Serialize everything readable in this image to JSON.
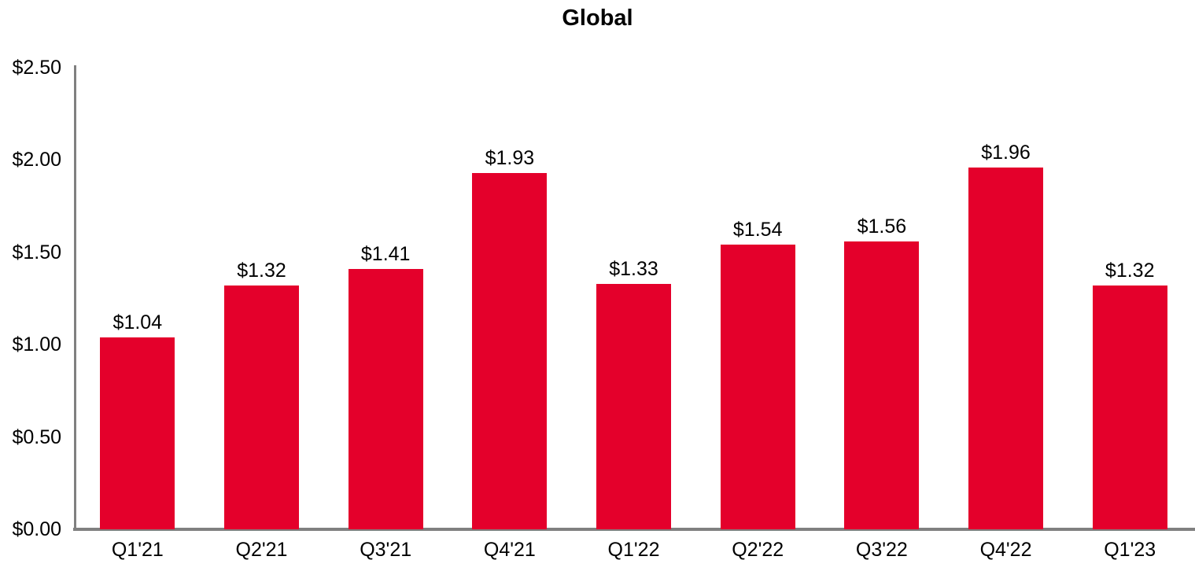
{
  "chart_data": {
    "type": "bar",
    "title": "Global",
    "categories": [
      "Q1'21",
      "Q2'21",
      "Q3'21",
      "Q4'21",
      "Q1'22",
      "Q2'22",
      "Q3'22",
      "Q4'22",
      "Q1'23"
    ],
    "values": [
      1.04,
      1.32,
      1.41,
      1.93,
      1.33,
      1.54,
      1.56,
      1.96,
      1.32
    ],
    "value_labels": [
      "$1.04",
      "$1.32",
      "$1.41",
      "$1.93",
      "$1.33",
      "$1.54",
      "$1.56",
      "$1.96",
      "$1.32"
    ],
    "xlabel": "",
    "ylabel": "",
    "ylim": [
      0,
      2.5
    ],
    "y_tick_values": [
      0,
      0.5,
      1,
      1.5,
      2,
      2.5
    ],
    "y_tick_labels": [
      "$0.00",
      "$0.50",
      "$1.00",
      "$1.50",
      "$2.00",
      "$2.50"
    ],
    "grid": false,
    "legend": null,
    "bar_color": "#E4002B",
    "axis_color": "#808080",
    "text_color": "#000000",
    "background_color": "#FFFFFF"
  }
}
